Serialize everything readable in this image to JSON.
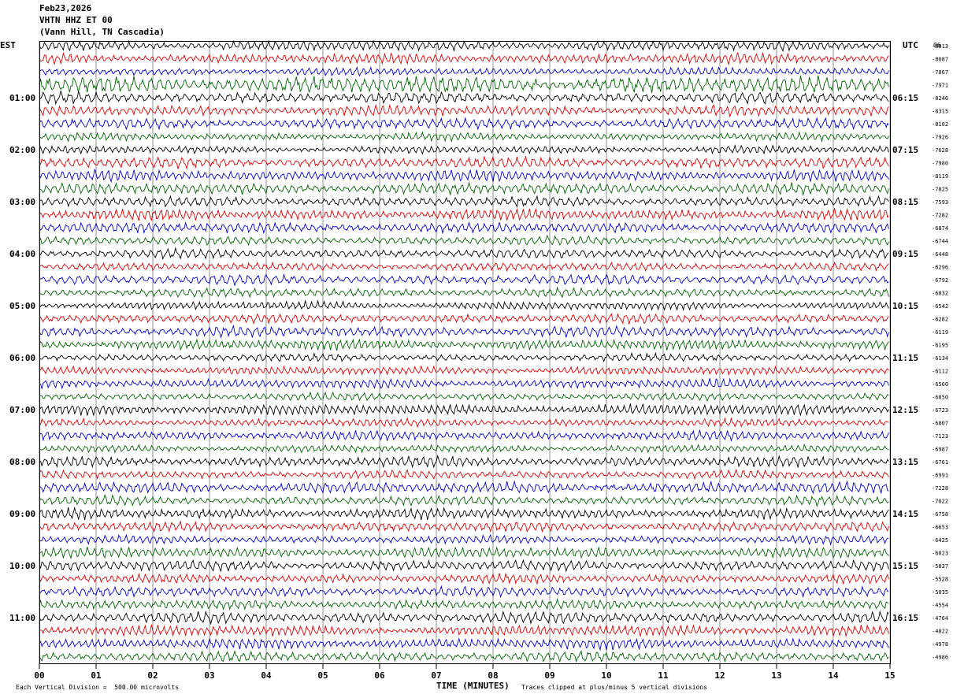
{
  "header": {
    "date": "Feb23,2026",
    "station": "VHTN HHZ ET 00",
    "location": "(Vann Hill, TN Cascadia)"
  },
  "left_tz": "EST",
  "right_tz": "UTC",
  "top_right_number": "06",
  "footer": {
    "left_note": "Each Vertical Division =  500.00 microvolts",
    "xlabel": "TIME (MINUTES)",
    "right_note": "Traces clipped at plus/minus 5 vertical divisions"
  },
  "colors": {
    "black": "#000000",
    "red": "#e00000",
    "blue": "#0000d0",
    "green": "#006400",
    "grid": "#606060"
  },
  "chart_data": {
    "type": "line",
    "title": "VHTN HHZ ET 00 (Vann Hill, TN Cascadia)",
    "xlabel": "TIME (MINUTES)",
    "x_ticks": [
      "00",
      "01",
      "02",
      "03",
      "04",
      "05",
      "06",
      "07",
      "08",
      "09",
      "10",
      "11",
      "12",
      "13",
      "14",
      "15"
    ],
    "xlim": [
      0,
      15
    ],
    "trace_color_cycle": [
      "black",
      "red",
      "blue",
      "green"
    ],
    "left_hour_labels": [
      "01:00",
      "02:00",
      "03:00",
      "04:00",
      "05:00",
      "06:00",
      "07:00",
      "08:00",
      "09:00",
      "10:00",
      "11:00"
    ],
    "right_hour_labels": [
      "06:15",
      "07:15",
      "08:15",
      "09:15",
      "10:15",
      "11:15",
      "12:15",
      "13:15",
      "14:15",
      "15:15",
      "16:15"
    ],
    "trace_offsets": [
      "-8013",
      "-8087",
      "-7867",
      "-7971",
      "-8246",
      "-8315",
      "-8102",
      "-7926",
      "-7628",
      "-7980",
      "-8119",
      "-7825",
      "-7593",
      "-7282",
      "-6874",
      "-6744",
      "-6448",
      "-6296",
      "-6792",
      "-6832",
      "-6542",
      "-6282",
      "-6119",
      "-6195",
      "-6134",
      "-6112",
      "-6560",
      "-6850",
      "-6723",
      "-6807",
      "-7123",
      "-6987",
      "-6761",
      "-6991",
      "-7228",
      "-7022",
      "-6758",
      "-6653",
      "-6425",
      "-6023",
      "-5827",
      "-5528",
      "-5035",
      "-4554",
      "-4764",
      "-4822",
      "-4978",
      "-4986"
    ]
  }
}
